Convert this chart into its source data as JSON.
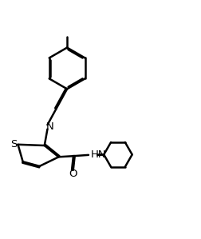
{
  "background_color": "#ffffff",
  "line_color": "#000000",
  "line_width": 1.8,
  "figsize": [
    2.52,
    2.99
  ],
  "dpi": 100,
  "xlim": [
    0,
    10
  ],
  "ylim": [
    0,
    11.8
  ]
}
